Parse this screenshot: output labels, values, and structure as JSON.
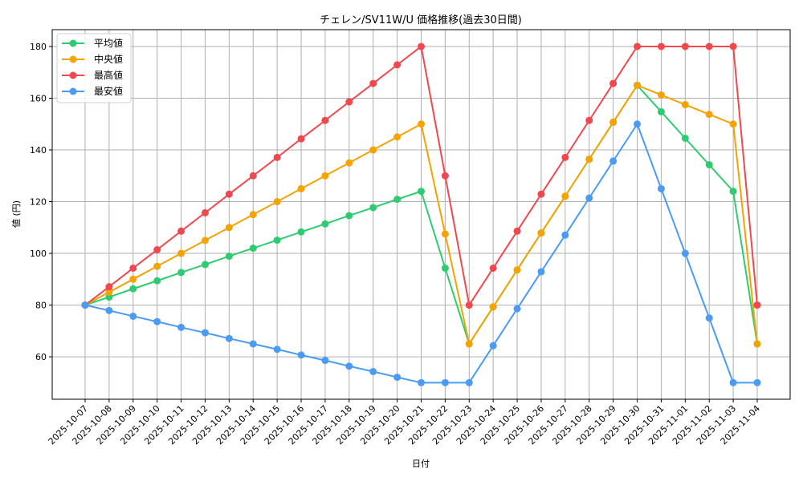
{
  "chart_data": {
    "type": "line",
    "title": "チェレン/SV11W/U 価格推移(過去30日間)",
    "xlabel": "日付",
    "ylabel": "値 (円)",
    "x": [
      "2025-10-07",
      "2025-10-08",
      "2025-10-09",
      "2025-10-10",
      "2025-10-11",
      "2025-10-12",
      "2025-10-13",
      "2025-10-14",
      "2025-10-15",
      "2025-10-16",
      "2025-10-17",
      "2025-10-18",
      "2025-10-19",
      "2025-10-20",
      "2025-10-21",
      "2025-10-22",
      "2025-10-23",
      "2025-10-24",
      "2025-10-25",
      "2025-10-26",
      "2025-10-27",
      "2025-10-28",
      "2025-10-29",
      "2025-10-30",
      "2025-10-31",
      "2025-11-01",
      "2025-11-02",
      "2025-11-03",
      "2025-11-04"
    ],
    "yticks": [
      60,
      80,
      100,
      120,
      140,
      160,
      180
    ],
    "ylim": [
      43.6,
      186.5
    ],
    "grid": true,
    "legend_position": "upper left",
    "series": [
      {
        "name": "平均値",
        "color": "#2ecc71",
        "values": [
          80,
          83.1,
          86.3,
          89.4,
          92.6,
          95.7,
          98.9,
          102.0,
          105.1,
          108.3,
          111.4,
          114.6,
          117.7,
          120.9,
          124.0,
          94.3,
          65,
          79.3,
          93.6,
          107.9,
          122.1,
          136.4,
          150.7,
          165,
          154.75,
          144.5,
          134.25,
          124,
          65
        ]
      },
      {
        "name": "中央値",
        "color": "#f5a300",
        "values": [
          80,
          85,
          90,
          95,
          100,
          105,
          110,
          115,
          120,
          125,
          130,
          135,
          140,
          145,
          150,
          107.5,
          65,
          79.3,
          93.6,
          107.9,
          122.1,
          136.4,
          150.7,
          165,
          161.25,
          157.5,
          153.75,
          150,
          65
        ]
      },
      {
        "name": "最高値",
        "color": "#f0484e",
        "values": [
          80,
          87.1,
          94.3,
          101.4,
          108.6,
          115.7,
          122.9,
          130.0,
          137.1,
          144.3,
          151.4,
          158.6,
          165.7,
          172.9,
          180,
          130,
          80,
          94.3,
          108.6,
          122.9,
          137.1,
          151.4,
          165.7,
          180,
          180,
          180,
          180,
          180,
          80
        ]
      },
      {
        "name": "最安値",
        "color": "#4b9bf5",
        "values": [
          80,
          77.9,
          75.7,
          73.6,
          71.4,
          69.3,
          67.1,
          65.0,
          62.9,
          60.7,
          58.6,
          56.4,
          54.3,
          52.1,
          50,
          50,
          50,
          64.3,
          78.6,
          92.9,
          107.1,
          121.4,
          135.7,
          150,
          125,
          100,
          75,
          50,
          50
        ]
      }
    ]
  }
}
